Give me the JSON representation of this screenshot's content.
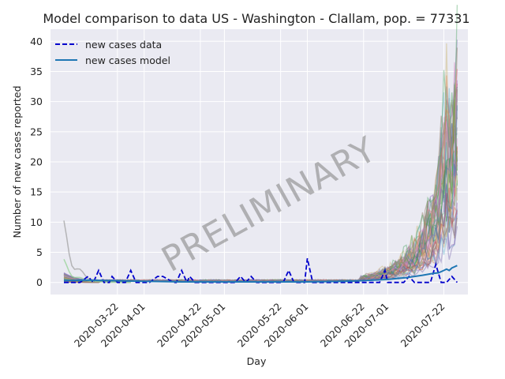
{
  "chart_data": {
    "type": "line",
    "title": "Model comparison to data US - Washington - Clallam, pop. = 77331",
    "xlabel": "Day",
    "ylabel": "Number of new cases reported",
    "watermark": "PRELIMINARY",
    "x_start": "2020-03-02",
    "x_end": "2020-07-27",
    "xlim": [
      "2020-02-26",
      "2020-07-31"
    ],
    "ylim": [
      -2,
      42
    ],
    "yticks": [
      0,
      5,
      10,
      15,
      20,
      25,
      30,
      35,
      40
    ],
    "xticks": [
      "2020-03-22",
      "2020-04-01",
      "2020-04-22",
      "2020-05-01",
      "2020-05-22",
      "2020-06-01",
      "2020-06-22",
      "2020-07-01",
      "2020-07-22"
    ],
    "grid": true,
    "legend": {
      "position": "top-left",
      "entries": [
        {
          "label": "new cases data",
          "style": "dashed",
          "color": "#0000cc"
        },
        {
          "label": "new cases model",
          "style": "solid",
          "color": "#1f77b4"
        }
      ]
    },
    "series": [
      {
        "name": "new cases data",
        "color": "#0000cc",
        "dates": [
          "2020-03-02",
          "2020-03-05",
          "2020-03-08",
          "2020-03-11",
          "2020-03-13",
          "2020-03-15",
          "2020-03-17",
          "2020-03-19",
          "2020-03-20",
          "2020-03-22",
          "2020-03-25",
          "2020-03-27",
          "2020-03-29",
          "2020-04-01",
          "2020-04-03",
          "2020-04-06",
          "2020-04-08",
          "2020-04-12",
          "2020-04-13",
          "2020-04-15",
          "2020-04-17",
          "2020-04-18",
          "2020-04-20",
          "2020-04-22",
          "2020-04-24",
          "2020-04-26",
          "2020-04-28",
          "2020-04-30",
          "2020-05-01",
          "2020-05-03",
          "2020-05-05",
          "2020-05-07",
          "2020-05-09",
          "2020-05-11",
          "2020-05-13",
          "2020-05-15",
          "2020-05-17",
          "2020-05-19",
          "2020-05-21",
          "2020-05-23",
          "2020-05-25",
          "2020-05-27",
          "2020-05-29",
          "2020-05-31",
          "2020-06-01",
          "2020-06-03",
          "2020-06-05",
          "2020-06-07",
          "2020-06-09",
          "2020-06-11",
          "2020-06-13",
          "2020-06-15",
          "2020-06-17",
          "2020-06-19",
          "2020-06-21",
          "2020-06-23",
          "2020-06-25",
          "2020-06-27",
          "2020-06-28",
          "2020-06-30",
          "2020-07-01",
          "2020-07-03",
          "2020-07-05",
          "2020-07-07",
          "2020-07-09",
          "2020-07-11",
          "2020-07-13",
          "2020-07-15",
          "2020-07-17",
          "2020-07-19",
          "2020-07-21",
          "2020-07-23",
          "2020-07-25",
          "2020-07-27"
        ],
        "values": [
          0,
          0,
          0,
          1,
          0,
          2,
          0,
          0,
          1,
          0,
          0,
          2,
          0,
          0,
          0,
          1,
          1,
          0,
          0,
          2,
          0,
          1,
          0,
          0,
          0,
          0,
          0,
          0,
          0,
          0,
          0,
          1,
          0,
          1,
          0,
          0,
          0,
          0,
          0,
          0,
          2,
          0,
          0,
          0,
          4,
          0,
          0,
          0,
          0,
          0,
          0,
          0,
          0,
          0,
          0,
          0,
          0,
          0,
          0,
          2,
          0,
          0,
          0,
          0,
          1,
          0,
          0,
          0,
          0,
          3,
          0,
          0,
          1,
          0
        ]
      },
      {
        "name": "new cases model",
        "color": "#1f77b4",
        "dates": [
          "2020-03-02",
          "2020-03-10",
          "2020-03-20",
          "2020-04-01",
          "2020-04-15",
          "2020-05-01",
          "2020-05-15",
          "2020-06-01",
          "2020-06-15",
          "2020-06-22",
          "2020-07-01",
          "2020-07-08",
          "2020-07-14",
          "2020-07-18",
          "2020-07-20",
          "2020-07-22",
          "2020-07-23",
          "2020-07-24",
          "2020-07-25",
          "2020-07-26",
          "2020-07-27"
        ],
        "values": [
          0.3,
          0.4,
          0.3,
          0.2,
          0.1,
          0.1,
          0.1,
          0.1,
          0.2,
          0.3,
          0.5,
          0.8,
          1.2,
          1.5,
          1.6,
          2.0,
          2.2,
          2.0,
          2.4,
          2.6,
          2.8
        ]
      }
    ]
  }
}
